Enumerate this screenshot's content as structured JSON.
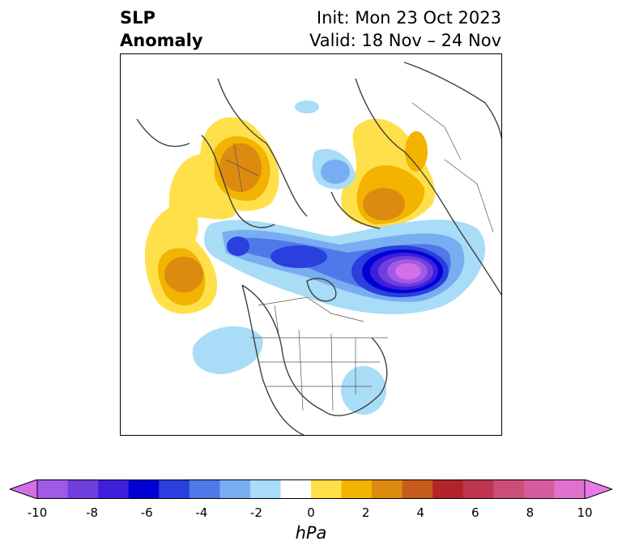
{
  "title": {
    "variable_line1": "SLP",
    "variable_line2": "Anomaly",
    "init_line": "Init: Mon 23 Oct 2023",
    "valid_line": "Valid: 18 Nov – 24 Nov"
  },
  "map": {
    "projection": "polar stereographic (North America / North Pacific / Arctic)",
    "features": [
      "coastlines",
      "country borders",
      "US state borders",
      "Canadian province borders"
    ],
    "anomaly_features": [
      {
        "name": "deep low",
        "region": "Gulf of Alaska / North Pacific",
        "approx_min_hPa": -10
      },
      {
        "name": "low belt",
        "region": "Bering Sea to Hudson Bay",
        "approx_min_hPa": -6
      },
      {
        "name": "high",
        "region": "Northern Europe / Scandinavia",
        "approx_max_hPa": 4
      },
      {
        "name": "high",
        "region": "Northeast Asia / Siberia",
        "approx_max_hPa": 4
      },
      {
        "name": "high",
        "region": "Central Atlantic",
        "approx_max_hPa": 4
      },
      {
        "name": "weak low",
        "region": "Northeast Pacific / US East",
        "approx_min_hPa": -2
      }
    ]
  },
  "colorbar": {
    "tick_labels": [
      "-10",
      "-8",
      "-6",
      "-4",
      "-2",
      "0",
      "2",
      "4",
      "6",
      "8",
      "10"
    ],
    "units": "hPa",
    "extend": "both",
    "level_colors": [
      "#d46fe6",
      "#a15ae6",
      "#6f40dd",
      "#3f1fdc",
      "#0000d4",
      "#2a3fdd",
      "#4f78e8",
      "#78adf2",
      "#a8dcf7",
      "#ffffff",
      "#ffe04a",
      "#f2b400",
      "#dd8a10",
      "#c85c1a",
      "#b3232a",
      "#c0354f",
      "#cc4d78",
      "#d65c9e",
      "#e072cf",
      "#e67be6"
    ]
  }
}
